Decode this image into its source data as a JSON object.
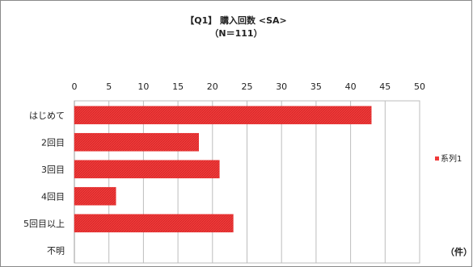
{
  "chart_data": {
    "type": "bar",
    "orientation": "horizontal",
    "title": "【Q1】 購入回数 <SA>",
    "subtitle": "（N＝111）",
    "categories": [
      "はじめて",
      "2回目",
      "3回目",
      "4回目",
      "5回目以上",
      "不明"
    ],
    "series": [
      {
        "name": "系列1",
        "values": [
          43,
          18,
          21,
          6,
          23,
          0
        ]
      }
    ],
    "xlim": [
      0,
      50
    ],
    "x_ticks": [
      0,
      5,
      10,
      15,
      20,
      25,
      30,
      35,
      40,
      45,
      50
    ],
    "x_tick_labels": [
      "0",
      "5",
      "10",
      "15",
      "20",
      "25",
      "30",
      "35",
      "40",
      "45",
      "50"
    ],
    "axis_position": "top",
    "grid": true,
    "legend_position": "right",
    "unit_label": "（件）",
    "bar_color": "#f03a3a"
  }
}
